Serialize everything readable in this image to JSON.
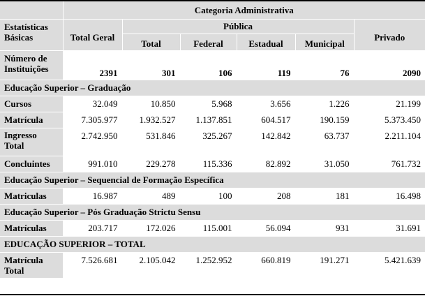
{
  "header": {
    "category": "Categoria Administrativa",
    "basic_stats": "Estatísticas Básicas",
    "total_geral": "Total Geral",
    "publica": "Pública",
    "total": "Total",
    "federal": "Federal",
    "estadual": "Estadual",
    "municipal": "Municipal",
    "privado": "Privado"
  },
  "institutions": {
    "label": "Número de Instituições",
    "values": [
      "2391",
      "301",
      "106",
      "119",
      "76",
      "2090"
    ]
  },
  "sections": {
    "graduacao": {
      "title": "Educação Superior – Graduação",
      "rows": [
        {
          "label": "Cursos",
          "values": [
            "32.049",
            "10.850",
            "5.968",
            "3.656",
            "1.226",
            "21.199"
          ]
        },
        {
          "label": "Matrícula",
          "values": [
            "7.305.977",
            "1.932.527",
            "1.137.851",
            "604.517",
            "190.159",
            "5.373.450"
          ]
        },
        {
          "label": "Ingresso Total",
          "values": [
            "2.742.950",
            "531.846",
            "325.267",
            "142.842",
            "63.737",
            "2.211.104"
          ]
        },
        {
          "label": "Concluintes",
          "values": [
            "991.010",
            "229.278",
            "115.336",
            "82.892",
            "31.050",
            "761.732"
          ]
        }
      ]
    },
    "sequencial": {
      "title": "Educação Superior – Sequencial de Formação Específica",
      "rows": [
        {
          "label": "Matriculas",
          "values": [
            "16.987",
            "489",
            "100",
            "208",
            "181",
            "16.498"
          ]
        }
      ]
    },
    "pos": {
      "title": "Educação Superior – Pós Graduação Strictu Sensu",
      "rows": [
        {
          "label": "Matrículas",
          "values": [
            "203.717",
            "172.026",
            "115.001",
            "56.094",
            "931",
            "31.691"
          ]
        }
      ]
    },
    "total": {
      "title": "EDUCAÇÃO SUPERIOR – TOTAL",
      "rows": [
        {
          "label": "Matrícula Total",
          "values": [
            "7.526.681",
            "2.105.042",
            "1.252.952",
            "660.819",
            "191.271",
            "5.421.639"
          ]
        }
      ]
    }
  }
}
